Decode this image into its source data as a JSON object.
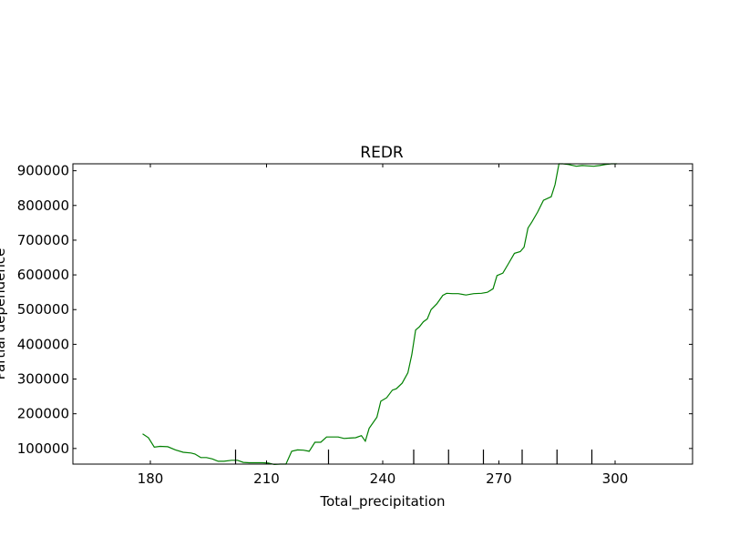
{
  "chart_data": {
    "type": "line",
    "title": "REDR",
    "xlabel": "Total_precipitation",
    "ylabel": "Partial dependence",
    "xlim": [
      160,
      320
    ],
    "ylim": [
      55000,
      920000
    ],
    "xticks": [
      180,
      210,
      240,
      270,
      300
    ],
    "xtick_labels": [
      "180",
      "210",
      "240",
      "270",
      "300"
    ],
    "yticks": [
      100000,
      200000,
      300000,
      400000,
      500000,
      600000,
      700000,
      800000,
      900000
    ],
    "ytick_labels": [
      "100000",
      "200000",
      "300000",
      "400000",
      "500000",
      "600000",
      "700000",
      "800000",
      "900000"
    ],
    "deciles": [
      202,
      226,
      248,
      257,
      266,
      276,
      285,
      294
    ],
    "grid": false,
    "line_color": "#008000",
    "series": [
      {
        "x": [
          178.0,
          179.5,
          181.0,
          182.5,
          184.5,
          186.5,
          188.5,
          190.5,
          191.5,
          193.0,
          194.5,
          196.0,
          197.5,
          199.0,
          201.0,
          202.5,
          204.0,
          205.5,
          207.0,
          209.0,
          210.5,
          212.0,
          213.5,
          215.0,
          216.5,
          218.0,
          219.5,
          221.0,
          222.5,
          224.0,
          225.5,
          227.0,
          228.5,
          230.0,
          231.5,
          233.0,
          234.5,
          235.5,
          236.5,
          238.5,
          239.5,
          241.0,
          242.5,
          243.5,
          245.0,
          246.5,
          247.5,
          248.5,
          249.5,
          250.5,
          251.5,
          252.5,
          254.0,
          255.5,
          256.5,
          258.0,
          259.5,
          261.5,
          263.5,
          265.5,
          267.0,
          268.5,
          269.5,
          271.0,
          272.5,
          274.0,
          275.5,
          276.5,
          277.5,
          278.5,
          280.0,
          281.5,
          283.5,
          284.5,
          285.5,
          286.5,
          288.0,
          290.0,
          291.5,
          293.0,
          294.5,
          296.0,
          297.5,
          299.0,
          300.5
        ],
        "y": [
          142000,
          131000,
          104000,
          106000,
          105000,
          96000,
          89000,
          87000,
          84000,
          74000,
          74000,
          70000,
          63000,
          63000,
          66000,
          66000,
          60000,
          59000,
          59000,
          59000,
          58000,
          54000,
          55000,
          55000,
          92000,
          96000,
          95000,
          92000,
          118000,
          118000,
          133000,
          133000,
          133000,
          129000,
          130000,
          131000,
          137000,
          121000,
          158000,
          190000,
          236000,
          246000,
          268000,
          272000,
          288000,
          318000,
          370000,
          441000,
          451000,
          465000,
          473000,
          500000,
          517000,
          541000,
          547000,
          546000,
          546000,
          542000,
          546000,
          547000,
          550000,
          560000,
          598000,
          605000,
          633000,
          662000,
          667000,
          680000,
          735000,
          752000,
          781000,
          815000,
          825000,
          860000,
          920000,
          920000,
          918000,
          913000,
          915000,
          914000,
          913000,
          915000,
          918000,
          920000,
          920000
        ]
      }
    ]
  }
}
